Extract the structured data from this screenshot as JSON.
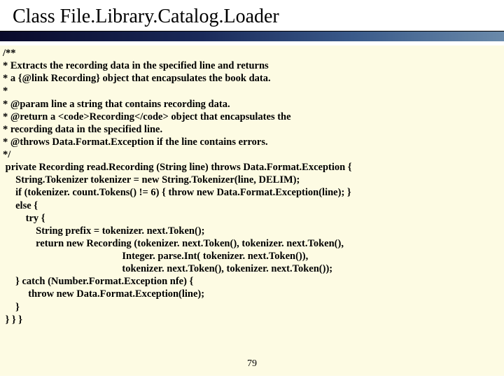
{
  "title": "Class File.Library.Catalog.Loader",
  "page_number": "79",
  "colors": {
    "code_bg": "#fdfbe3",
    "gradient_start": "#0a0a2a",
    "gradient_end": "#6a8aaa"
  },
  "code_lines": [
    "/**",
    "* Extracts the recording data in the specified line and returns",
    "* a {@link Recording} object that encapsulates the book data.",
    "*",
    "* @param line a string that contains recording data.",
    "* @return a <code>Recording</code> object that encapsulates the",
    "* recording data in the specified line.",
    "* @throws Data.Format.Exception if the line contains errors.",
    "*/",
    " private Recording read.Recording (String line) throws Data.Format.Exception {",
    "     String.Tokenizer tokenizer = new String.Tokenizer(line, DELIM);",
    "     if (tokenizer. count.Tokens() != 6) { throw new Data.Format.Exception(line); }",
    "     else {",
    "         try {",
    "             String prefix = tokenizer. next.Token();",
    "             return new Recording (tokenizer. next.Token(), tokenizer. next.Token(),",
    "                                               Integer. parse.Int( tokenizer. next.Token()),",
    "                                               tokenizer. next.Token(), tokenizer. next.Token());",
    "     } catch (Number.Format.Exception nfe) {",
    "          throw new Data.Format.Exception(line);",
    "     }",
    " } } }"
  ]
}
